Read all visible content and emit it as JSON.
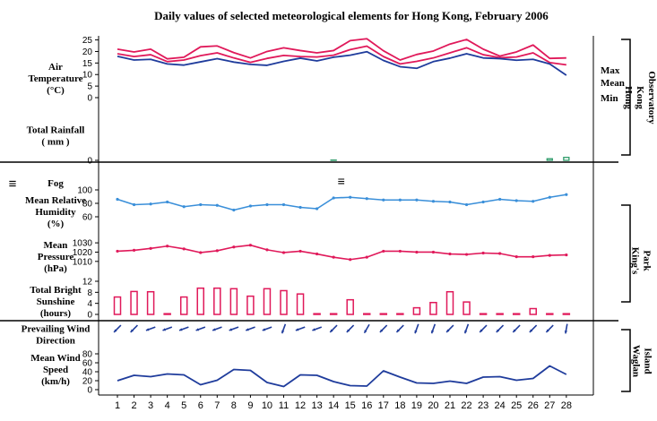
{
  "chart_data": {
    "type": "line",
    "title": "Daily values of selected meteorological elements for Hong Kong, February 2006",
    "x": [
      1,
      2,
      3,
      4,
      5,
      6,
      7,
      8,
      9,
      10,
      11,
      12,
      13,
      14,
      15,
      16,
      17,
      18,
      19,
      20,
      21,
      22,
      23,
      24,
      25,
      26,
      27,
      28
    ],
    "colors": {
      "max": "#e0195a",
      "mean": "#e0195a",
      "min": "#1f3c9c",
      "humidity": "#3a8fd9",
      "pressure": "#e0195a",
      "sunshine": "#e0195a",
      "rain": "#2e9c6a",
      "wind_dir": "#1f3c9c",
      "wind_speed": "#1f3c9c",
      "fog": "#000000"
    },
    "panels": {
      "air_temperature": {
        "label": [
          "Air",
          "Temperature",
          "(°C)"
        ],
        "ylim": [
          0,
          26
        ],
        "ticks": [
          "0",
          "5",
          "10",
          "15",
          "20",
          "25"
        ],
        "series": [
          {
            "name": "Max",
            "values": [
              21,
              19.8,
              21,
              16.8,
              17.5,
              22,
              22.4,
              19.5,
              17.2,
              20,
              21.6,
              20.4,
              19.4,
              20.4,
              24.7,
              25.5,
              20.3,
              16.3,
              18.7,
              20.2,
              23.2,
              25.2,
              21,
              18,
              19.8,
              22.8,
              17,
              17.2
            ]
          },
          {
            "name": "Mean",
            "values": [
              19,
              17.8,
              18.6,
              15.6,
              16.3,
              18.2,
              19.4,
              17.2,
              15.3,
              17,
              18.3,
              17.8,
              17.6,
              18.4,
              20.8,
              22.3,
              17.8,
              14.6,
              15.7,
              17.2,
              19.4,
              21.6,
              18.6,
              17.3,
              17.6,
              19.4,
              15.2,
              14.2
            ]
          },
          {
            "name": "Min",
            "values": [
              17.9,
              16.3,
              16.6,
              14.6,
              14.1,
              15.5,
              16.9,
              15.4,
              14.4,
              14,
              15.7,
              17.1,
              15.9,
              17.5,
              18.4,
              19.9,
              16.1,
              13.4,
              12.7,
              15.6,
              17.1,
              19,
              17.2,
              16.9,
              16.2,
              16.6,
              14.6,
              9.7
            ]
          }
        ]
      },
      "total_rainfall": {
        "label": [
          "Total Rainfall",
          "( mm )"
        ],
        "ylim": [
          0,
          40
        ],
        "ticks": [
          "0"
        ],
        "values": [
          0,
          0,
          0,
          0,
          0,
          0,
          0,
          0,
          0,
          0,
          0,
          0,
          0,
          0.5,
          0,
          0,
          0,
          0,
          0,
          0,
          0,
          0,
          0,
          0,
          0,
          0,
          3,
          5.5
        ]
      },
      "fog": {
        "label": "Fog",
        "symbol": "≡",
        "days": [
          15
        ]
      },
      "mean_relative_humidity": {
        "label": [
          "Mean Relative",
          "Humidity",
          "(%)"
        ],
        "ylim": [
          60,
          100
        ],
        "ticks": [
          "100",
          "80",
          "60"
        ],
        "values": [
          86,
          78,
          79,
          82,
          75,
          78,
          77,
          70,
          76,
          78,
          78,
          74,
          72,
          88,
          89,
          87,
          85,
          85,
          85,
          83,
          82,
          78,
          82,
          86,
          84,
          83,
          89,
          93
        ]
      },
      "mean_pressure": {
        "label": [
          "Mean",
          "Pressure",
          "(hPa)"
        ],
        "ylim": [
          1005,
          1033
        ],
        "ticks": [
          "1030",
          "1020",
          "1010"
        ],
        "values": [
          1021,
          1022,
          1024,
          1026.5,
          1023.5,
          1019.5,
          1021.5,
          1025.5,
          1027.5,
          1022.5,
          1019.5,
          1021,
          1018,
          1014.5,
          1012,
          1014.5,
          1021,
          1021,
          1020,
          1020,
          1018,
          1017.5,
          1019,
          1018.5,
          1015,
          1015,
          1016.5,
          1017
        ]
      },
      "total_bright_sunshine": {
        "label": [
          "Total Bright",
          "Sunshine",
          "(hours)"
        ],
        "ylim": [
          0,
          12
        ],
        "ticks": [
          "12",
          "8",
          "4",
          "0"
        ],
        "values": [
          6.3,
          8.3,
          8.2,
          0,
          6.3,
          9.5,
          9.5,
          9.3,
          6.6,
          9.3,
          8.6,
          7.4,
          0.2,
          0,
          5.3,
          0,
          0.1,
          0,
          2.4,
          4.3,
          8.2,
          4.5,
          0,
          0.1,
          0.2,
          2.1,
          0,
          0.2
        ]
      },
      "prevailing_wind_direction": {
        "label": [
          "Prevailing Wind",
          "Direction"
        ],
        "angles": [
          225,
          225,
          250,
          250,
          250,
          250,
          250,
          250,
          250,
          250,
          200,
          250,
          250,
          225,
          225,
          210,
          225,
          225,
          200,
          200,
          225,
          200,
          225,
          225,
          225,
          225,
          225,
          190
        ]
      },
      "mean_wind_speed": {
        "label": [
          "Mean Wind",
          "Speed",
          "(km/h)"
        ],
        "ylim": [
          0,
          80
        ],
        "ticks": [
          "80",
          "60",
          "40",
          "20",
          "0"
        ],
        "values": [
          20,
          32,
          29,
          35,
          33,
          11,
          21,
          45,
          43,
          16,
          7,
          33,
          32,
          18,
          9,
          8,
          42,
          28,
          15,
          14,
          19,
          14,
          28,
          29,
          21,
          25,
          53,
          34
        ]
      }
    },
    "stations": [
      {
        "name": "Hong Kong Observatory",
        "label": [
          "Hong",
          "Kong",
          "Observatory"
        ]
      },
      {
        "name": "King's Park",
        "label": [
          "King's",
          "Park"
        ]
      },
      {
        "name": "Waglan Island",
        "label": [
          "Waglan",
          "Island"
        ]
      }
    ]
  }
}
